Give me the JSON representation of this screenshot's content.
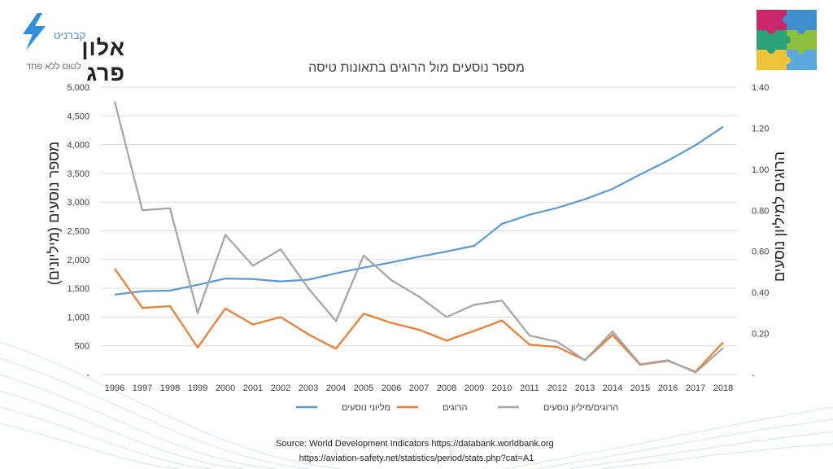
{
  "logo": {
    "small_text": "קברניט",
    "name": "אלון פרג",
    "tagline": "לטוס ללא פחד"
  },
  "chart_data": {
    "type": "line",
    "title": "מספר נוסעים מול הרוגים בתאונות טיסה",
    "categories": [
      "1996",
      "1997",
      "1998",
      "1999",
      "2000",
      "2001",
      "2002",
      "2003",
      "2004",
      "2005",
      "2006",
      "2007",
      "2008",
      "2009",
      "2010",
      "2011",
      "2012",
      "2013",
      "2014",
      "2015",
      "2016",
      "2017",
      "2018"
    ],
    "ylabel": "מספר נוסעים (מיליונים)",
    "y2label": "הרוגים למיליון נוסעים",
    "ylim": [
      0,
      5000
    ],
    "y2lim": [
      0,
      1.4
    ],
    "y_ticks": [
      "-",
      "500",
      "1,000",
      "1,500",
      "2,000",
      "2,500",
      "3,000",
      "3,500",
      "4,000",
      "4,500",
      "5,000"
    ],
    "y2_ticks": [
      "-",
      "0.20",
      "0.40",
      "0.60",
      "0.80",
      "1.00",
      "1.20",
      "1.40"
    ],
    "legend_position": "bottom",
    "series": [
      {
        "name": "מליוני נוסעים",
        "color": "#5b9bd5",
        "axis": "left",
        "values": [
          1390,
          1450,
          1460,
          1560,
          1670,
          1660,
          1620,
          1650,
          1760,
          1860,
          1950,
          2050,
          2140,
          2240,
          2620,
          2780,
          2900,
          3050,
          3230,
          3480,
          3720,
          3990,
          4310
        ]
      },
      {
        "name": "הרוגים",
        "color": "#ed7d31",
        "axis": "left",
        "values": [
          1840,
          1160,
          1190,
          470,
          1150,
          870,
          1000,
          700,
          450,
          1060,
          900,
          780,
          590,
          760,
          940,
          520,
          480,
          250,
          690,
          170,
          240,
          50,
          560
        ]
      },
      {
        "name": "הרוגים/מיליון נוסעים",
        "color": "#a5a5a5",
        "axis": "right",
        "values": [
          1.33,
          0.8,
          0.81,
          0.3,
          0.68,
          0.53,
          0.61,
          0.42,
          0.26,
          0.58,
          0.46,
          0.38,
          0.28,
          0.34,
          0.36,
          0.19,
          0.16,
          0.07,
          0.21,
          0.05,
          0.07,
          0.01,
          0.13
        ]
      }
    ]
  },
  "source": {
    "line1": "Source: World Development Indicators https://databank.worldbank.org",
    "line2": "https://aviation-safety.net/statistics/period/stats.php?cat=A1"
  }
}
